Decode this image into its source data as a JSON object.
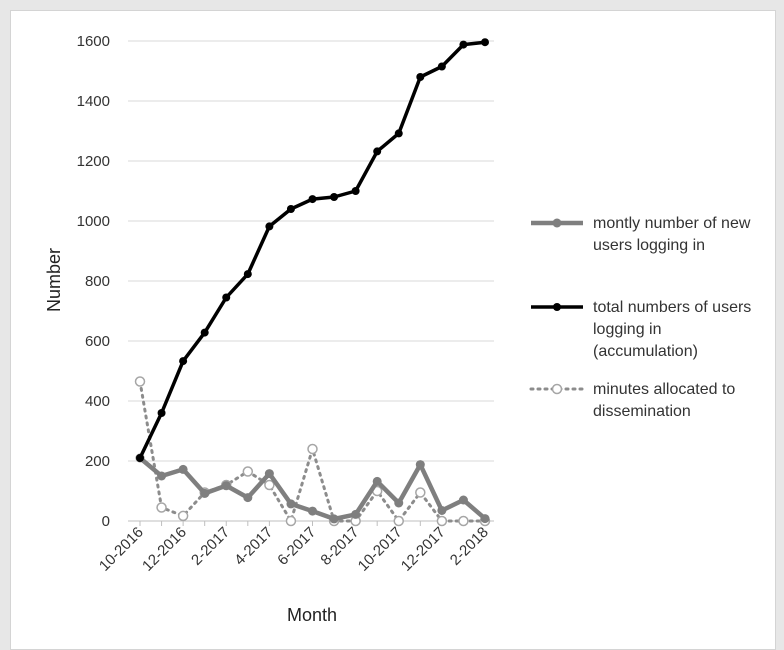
{
  "chart_data": {
    "type": "line",
    "title": "",
    "xlabel": "Month",
    "ylabel": "Number",
    "ylim": [
      0,
      1600
    ],
    "y_ticks": [
      "0",
      "200",
      "400",
      "600",
      "800",
      "1000",
      "1200",
      "1400",
      "1600"
    ],
    "x": [
      "10-2016",
      "11-2016",
      "12-2016",
      "1-2017",
      "2-2017",
      "3-2017",
      "4-2017",
      "5-2017",
      "6-2017",
      "7-2017",
      "8-2017",
      "9-2017",
      "10-2017",
      "11-2017",
      "12-2017",
      "1-2018",
      "2-2018"
    ],
    "x_tick_labels": [
      "10-2016",
      "12-2016",
      "2-2017",
      "4-2017",
      "6-2017",
      "8-2017",
      "10-2017",
      "12-2017",
      "2-2018"
    ],
    "grid": "horizontal",
    "legend_position": "right",
    "series": [
      {
        "name": "montly number of new users logging in",
        "legend_lines": [
          "montly number of new",
          "users logging in"
        ],
        "color": "#7f7f7f",
        "style": "solid-gray-dots",
        "values": [
          210,
          150,
          172,
          92,
          118,
          78,
          158,
          57,
          33,
          7,
          22,
          132,
          60,
          188,
          35,
          70,
          8
        ]
      },
      {
        "name": "total numbers of users logging in (accumulation)",
        "legend_lines": [
          "total numbers of users",
          "logging in",
          "(accumulation)"
        ],
        "color": "#000000",
        "style": "solid-black-dots",
        "values": [
          210,
          360,
          533,
          628,
          745,
          823,
          982,
          1040,
          1073,
          1080,
          1100,
          1232,
          1292,
          1480,
          1515,
          1588,
          1596
        ]
      },
      {
        "name": "minutes allocated to dissemination",
        "legend_lines": [
          "minutes allocated to",
          "dissemination"
        ],
        "color": "#8c8c8c",
        "style": "dotted-hollow",
        "values": [
          465,
          45,
          17,
          95,
          120,
          165,
          120,
          0,
          240,
          0,
          0,
          100,
          0,
          95,
          0,
          0,
          0
        ]
      }
    ]
  }
}
